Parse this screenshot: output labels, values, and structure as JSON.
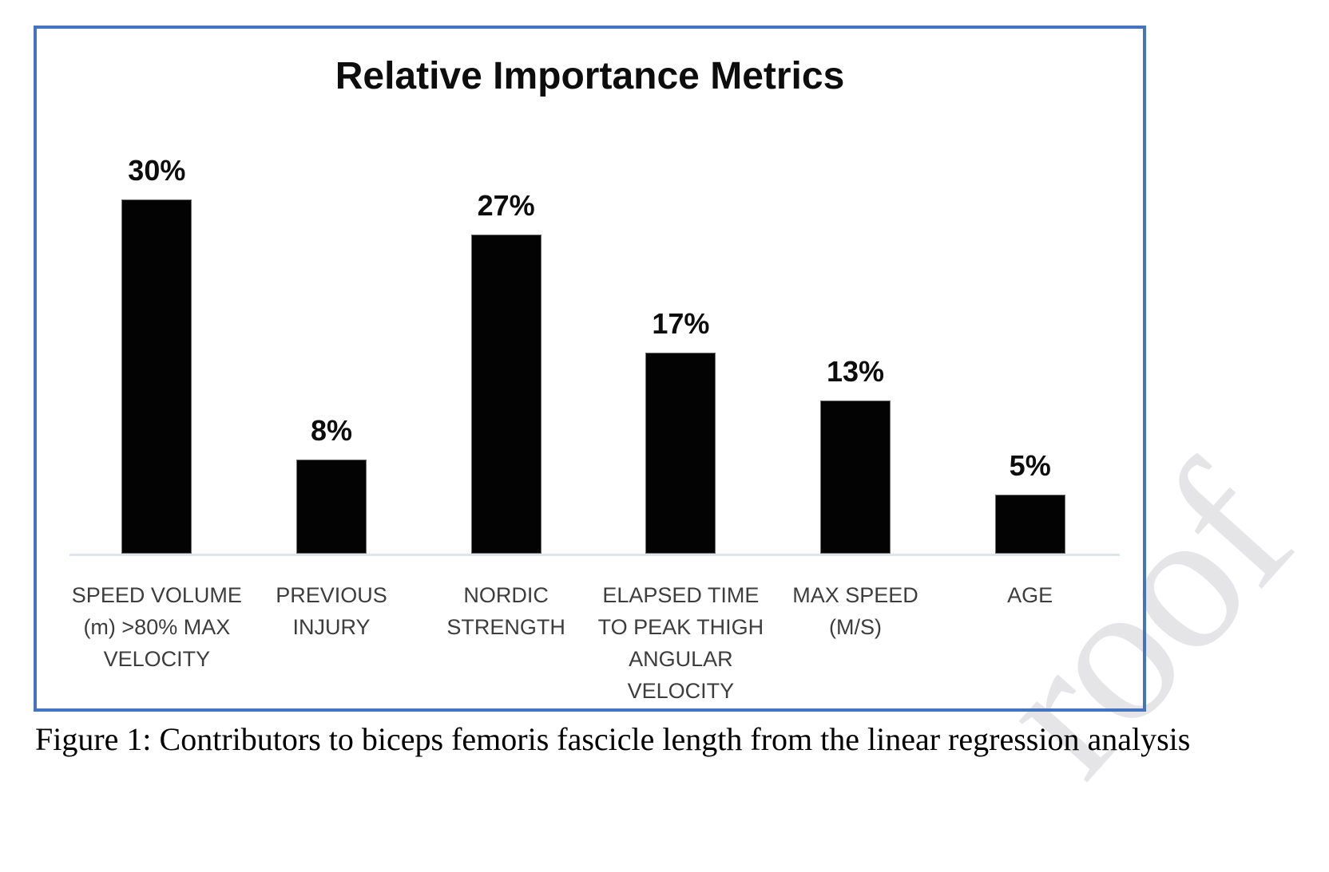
{
  "figure": {
    "caption": "Figure 1: Contributors to biceps femoris fascicle length from the linear regression analysis",
    "watermark_text": "roof",
    "border_color": "#4673bf"
  },
  "chart_data": {
    "type": "bar",
    "title": "Relative Importance Metrics",
    "categories": [
      "SPEED VOLUME (m) >80% MAX VELOCITY",
      "PREVIOUS INJURY",
      "NORDIC STRENGTH",
      "ELAPSED TIME TO PEAK THIGH ANGULAR VELOCITY",
      "MAX SPEED (M/S)",
      "AGE"
    ],
    "category_labels_display": [
      "SPEED VOLUME\n(m) >80% MAX\nVELOCITY",
      "PREVIOUS\nINJURY",
      "NORDIC\nSTRENGTH",
      "ELAPSED TIME\nTO PEAK THIGH\nANGULAR\nVELOCITY",
      "MAX SPEED\n(M/S)",
      "AGE"
    ],
    "values": [
      30,
      8,
      27,
      17,
      13,
      5
    ],
    "value_labels": [
      "30%",
      "8%",
      "27%",
      "17%",
      "13%",
      "5%"
    ],
    "bar_color": "#030303",
    "axis_line_color": "#dfe5ec",
    "text_color_values": "#0d0d0d",
    "text_color_categories": "#3d3d3d",
    "y_axis_visible": false,
    "grid": false,
    "legend": false
  }
}
